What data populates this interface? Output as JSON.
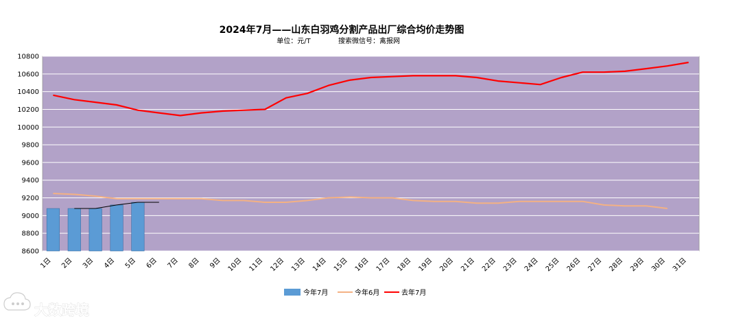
{
  "chart_data": {
    "type": "bar+line",
    "title": "2024年7月——山东白羽鸡分割产品出厂综合均价走势图",
    "subtitle_unit": "单位：元/T",
    "subtitle_source": "搜索微信号：禽报网",
    "categories": [
      "1日",
      "2日",
      "3日",
      "4日",
      "5日",
      "6日",
      "7日",
      "8日",
      "9日",
      "10日",
      "11日",
      "12日",
      "13日",
      "14日",
      "15日",
      "16日",
      "17日",
      "18日",
      "19日",
      "20日",
      "21日",
      "22日",
      "23日",
      "24日",
      "25日",
      "26日",
      "27日",
      "28日",
      "29日",
      "30日",
      "31日"
    ],
    "ylim": [
      8600,
      10800
    ],
    "yticks": [
      8600,
      8800,
      9000,
      9200,
      9400,
      9600,
      9800,
      10000,
      10200,
      10400,
      10600,
      10800
    ],
    "grid": true,
    "legend_position": "bottom",
    "plot_background": "#b2a2c8",
    "series": [
      {
        "name": "今年7月",
        "kind": "bar",
        "color": "#5b9bd5",
        "values": [
          9080,
          9080,
          9080,
          9120,
          9150,
          null,
          null,
          null,
          null,
          null,
          null,
          null,
          null,
          null,
          null,
          null,
          null,
          null,
          null,
          null,
          null,
          null,
          null,
          null,
          null,
          null,
          null,
          null,
          null,
          null,
          null
        ]
      },
      {
        "name": "今年6月",
        "kind": "line",
        "color": "#f4b183",
        "values": [
          9250,
          9240,
          9220,
          9190,
          9190,
          9190,
          9190,
          9190,
          9170,
          9170,
          9150,
          9150,
          9170,
          9200,
          9210,
          9200,
          9200,
          9170,
          9160,
          9160,
          9140,
          9140,
          9160,
          9160,
          9160,
          9160,
          9120,
          9110,
          9110,
          9080,
          null
        ]
      },
      {
        "name": "去年7月",
        "kind": "line",
        "color": "#ff0000",
        "values": [
          10360,
          10310,
          10280,
          10250,
          10190,
          10160,
          10130,
          10160,
          10180,
          10190,
          10200,
          10330,
          10380,
          10470,
          10530,
          10560,
          10570,
          10580,
          10580,
          10580,
          10560,
          10520,
          10500,
          10480,
          10560,
          10620,
          10620,
          10630,
          10660,
          10690,
          10730
        ]
      }
    ],
    "trendline": {
      "color": "#000000",
      "values": [
        null,
        9080,
        9080,
        9120,
        9150,
        9150
      ]
    }
  },
  "watermark": {
    "text": "大数跨境",
    "icon": "cloud-chat-icon"
  }
}
